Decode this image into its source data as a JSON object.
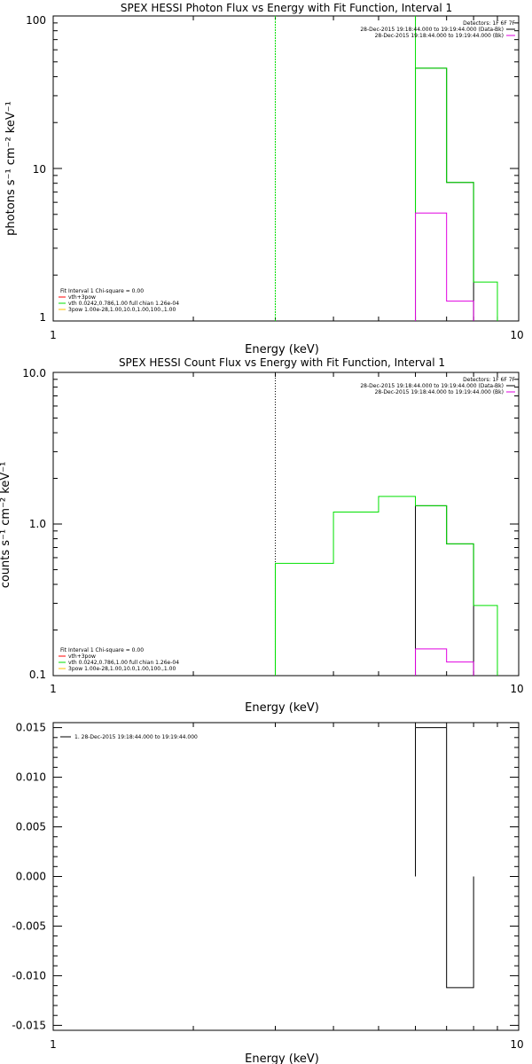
{
  "colors": {
    "black": "#000000",
    "red": "#ff0000",
    "green": "#00e000",
    "magenta": "#e000e0",
    "orange": "#ffc000"
  },
  "chart_data": [
    {
      "type": "line",
      "title": "SPEX HESSI Photon Flux vs Energy with Fit Function, Interval 1",
      "xlabel": "Energy (keV)",
      "ylabel": "photons s⁻¹ cm⁻² keV⁻¹",
      "xscale": "log",
      "yscale": "log",
      "xlim": [
        1,
        10
      ],
      "ylim": [
        1,
        100
      ],
      "x_ticks": [
        "1",
        "10"
      ],
      "y_ticks": [
        "1",
        "10",
        "100"
      ],
      "vline_x": 3.0,
      "top_legend": [
        {
          "text": "Detectors: 1F 6F 7F",
          "color": ""
        },
        {
          "text": "28-Dec-2015 19:18:44.000 to 19:19:44.000 (Data-Bk)",
          "color": "#000000"
        },
        {
          "text": "28-Dec-2015 19:18:44.000 to 19:19:44.000 (Bk)",
          "color": "#e000e0"
        }
      ],
      "bottom_legend": [
        {
          "text": "Fit Interval 1    Chi-square = 0.00",
          "color": ""
        },
        {
          "text": "vth+3pow",
          "color": "#ff0000"
        },
        {
          "text": "vth 0.0242,0.786,1.00   full chian 1.26e-04",
          "color": "#00e000"
        },
        {
          "text": "3pow 1.00e-28,1.00,10.0,1.00,100.,1.00",
          "color": "#ffc000"
        }
      ],
      "series": [
        {
          "name": "Data-Bk",
          "color": "#000000",
          "bins": [
            [
              6,
              7,
              45.5
            ],
            [
              7,
              8,
              8.1
            ]
          ]
        },
        {
          "name": "vth+3pow",
          "color": "#00e000",
          "bins": [
            [
              6,
              7,
              45.5
            ],
            [
              7,
              8,
              8.1
            ],
            [
              8,
              9,
              1.8
            ]
          ]
        },
        {
          "name": "Bk",
          "color": "#e000e0",
          "bins": [
            [
              6,
              7,
              5.1
            ],
            [
              7,
              8,
              1.35
            ]
          ]
        }
      ],
      "green_spike_x": 6
    },
    {
      "type": "line",
      "title": "SPEX HESSI Count Flux vs Energy with Fit Function, Interval 1",
      "xlabel": "Energy (keV)",
      "ylabel": "counts s⁻¹ cm⁻² keV⁻¹",
      "xscale": "log",
      "yscale": "log",
      "xlim": [
        1,
        10
      ],
      "ylim": [
        0.1,
        10
      ],
      "x_ticks": [
        "1",
        "10"
      ],
      "y_ticks": [
        "0.1",
        "1.0",
        "10.0"
      ],
      "vline_x": 3.0,
      "top_legend": [
        {
          "text": "Detectors: 1F 6F 7F",
          "color": ""
        },
        {
          "text": "28-Dec-2015 19:18:44.000 to 19:19:44.000 (Data-Bk)",
          "color": "#000000"
        },
        {
          "text": "28-Dec-2015 19:18:44.000 to 19:19:44.000 (Bk)",
          "color": "#e000e0"
        }
      ],
      "bottom_legend": [
        {
          "text": "Fit Interval 1    Chi-square = 0.00",
          "color": ""
        },
        {
          "text": "vth+3pow",
          "color": "#ff0000"
        },
        {
          "text": "vth 0.0242,0.786,1.00   full chian 1.26e-04",
          "color": "#00e000"
        },
        {
          "text": "3pow 1.00e-28,1.00,10.0,1.00,100.,1.00",
          "color": "#ffc000"
        }
      ],
      "series": [
        {
          "name": "Data-Bk",
          "color": "#000000",
          "bins": [
            [
              6,
              7,
              1.32
            ],
            [
              7,
              8,
              0.74
            ]
          ]
        },
        {
          "name": "vth+3pow",
          "color": "#00e000",
          "bins": [
            [
              3,
              4,
              0.55
            ],
            [
              4,
              5,
              1.2
            ],
            [
              5,
              6,
              1.52
            ],
            [
              6,
              7,
              1.32
            ],
            [
              7,
              8,
              0.74
            ],
            [
              8,
              9,
              0.29
            ]
          ]
        },
        {
          "name": "Bk",
          "color": "#e000e0",
          "bins": [
            [
              6,
              7,
              0.15
            ],
            [
              7,
              8,
              0.123
            ]
          ]
        }
      ]
    },
    {
      "type": "line",
      "title": "",
      "xlabel": "Energy (keV)",
      "ylabel": "",
      "xscale": "log",
      "yscale": "linear",
      "xlim": [
        1,
        10
      ],
      "ylim": [
        -0.0155,
        0.0155
      ],
      "x_ticks": [
        "1",
        "10"
      ],
      "y_ticks": [
        "0.015",
        "0.010",
        "0.005",
        "0.000",
        "-0.005",
        "-0.010",
        "-0.015"
      ],
      "y_tick_values": [
        0.015,
        0.01,
        0.005,
        0.0,
        -0.005,
        -0.01,
        -0.015
      ],
      "top_legend": [
        {
          "text": "1. 28-Dec-2015 19:18:44.000 to 19:19:44.000",
          "color": "#000000"
        }
      ],
      "series": [
        {
          "name": "",
          "color": "#000000",
          "bins": [
            [
              6,
              7,
              0.015
            ],
            [
              7,
              8,
              -0.0112
            ]
          ]
        }
      ]
    }
  ]
}
